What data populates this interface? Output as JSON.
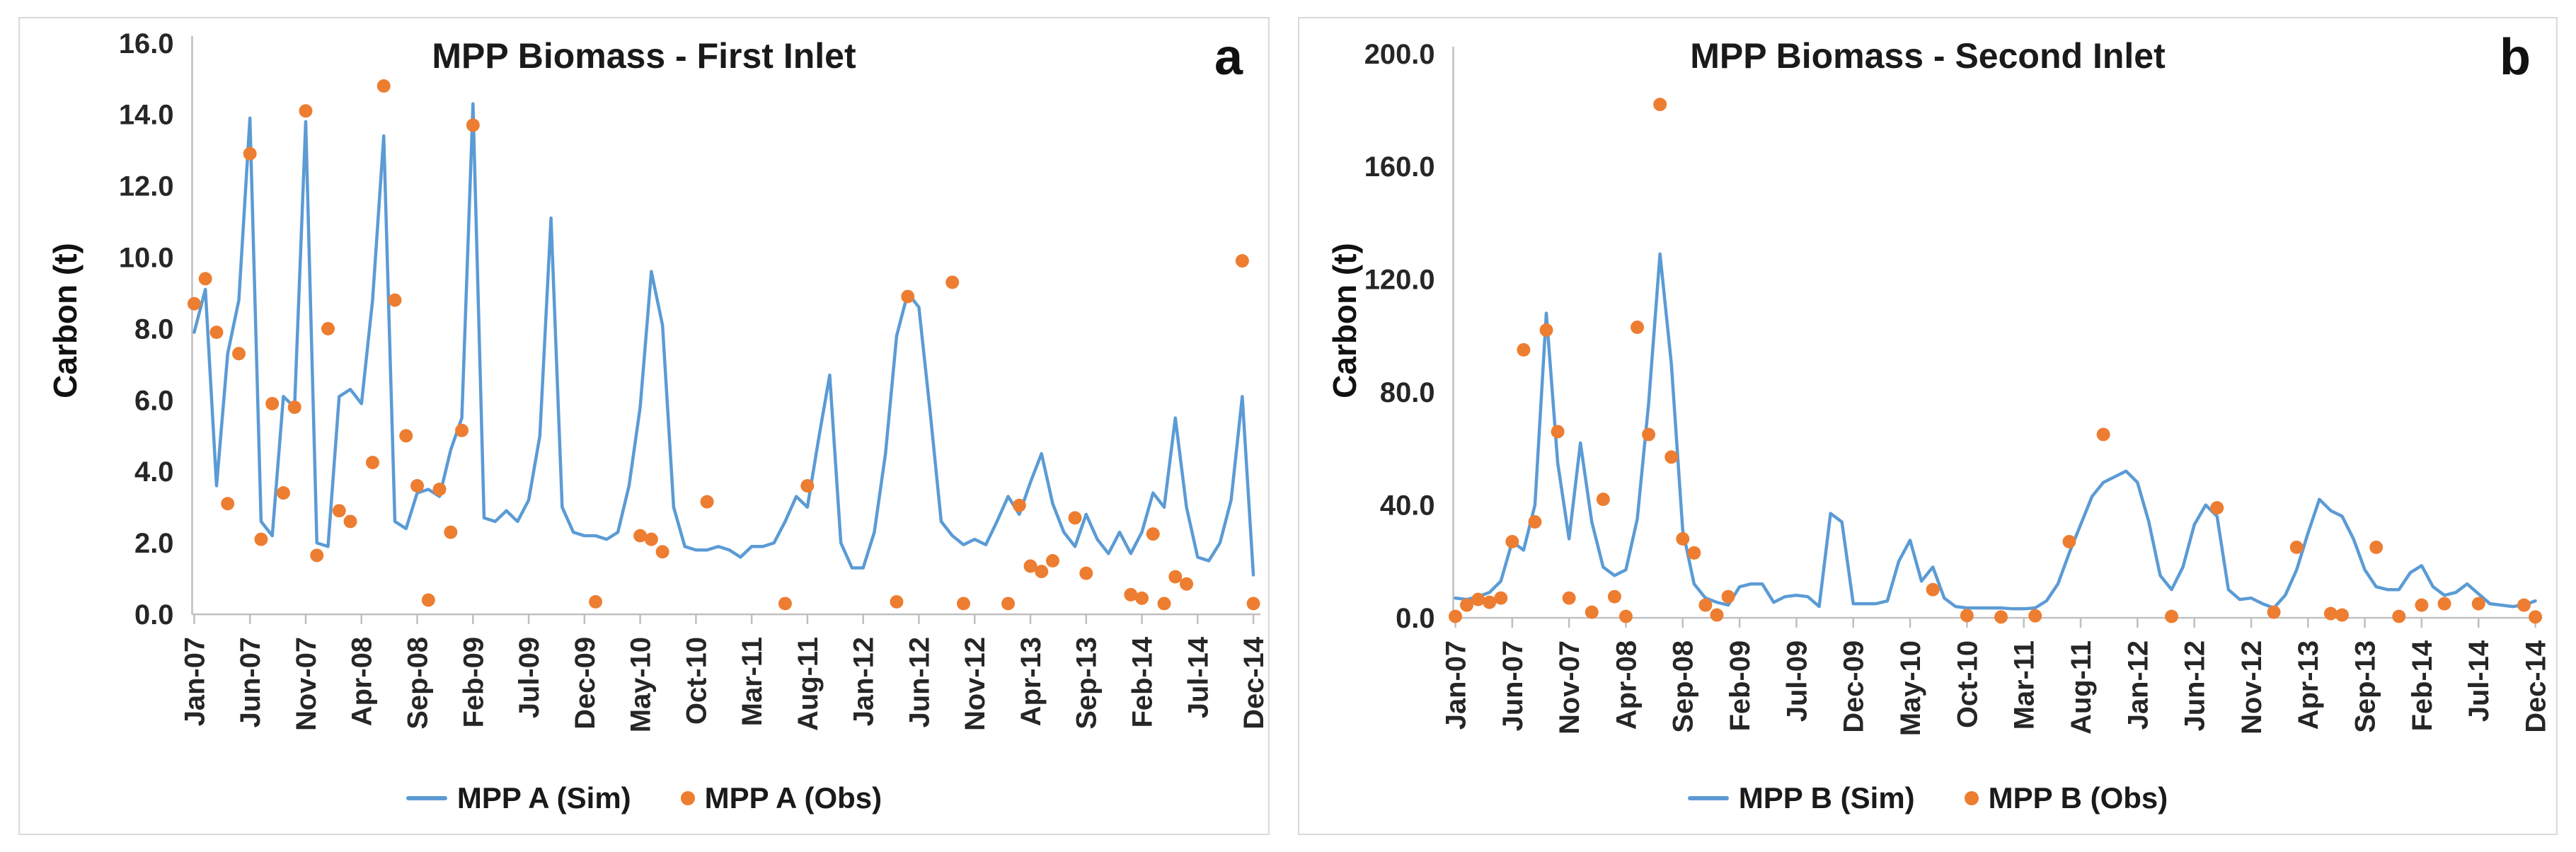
{
  "colors": {
    "sim_line": "#5B9BD5",
    "obs_dot": "#ED7D31",
    "axis_line": "#BFBFBF",
    "tick_text": "#262626",
    "title_text": "#1A1A1A",
    "panel_border": "#D9D9D9"
  },
  "panels": [
    {
      "badge": "a",
      "title": "MPP Biomass - First Inlet",
      "y_axis_title": "Carbon (t)",
      "legend": [
        {
          "type": "line",
          "label": "MPP A (Sim)"
        },
        {
          "type": "dot",
          "label": "MPP A (Obs)"
        }
      ]
    },
    {
      "badge": "b",
      "title": "MPP Biomass - Second Inlet",
      "y_axis_title": "Carbon (t)",
      "legend": [
        {
          "type": "line",
          "label": "MPP B (Sim)"
        },
        {
          "type": "dot",
          "label": "MPP B (Obs)"
        }
      ]
    }
  ],
  "chart_data": [
    {
      "type": "line",
      "title": "MPP Biomass - First Inlet",
      "ylabel": "Carbon (t)",
      "ylim": [
        0,
        16
      ],
      "y_tick_labels": [
        "0.0",
        "2.0",
        "4.0",
        "6.0",
        "8.0",
        "10.0",
        "12.0",
        "14.0",
        "16.0"
      ],
      "x_start": "Jan-07",
      "x_end": "Dec-14",
      "x_interval": "monthly",
      "x_tick_labels": [
        "Jan-07",
        "Jun-07",
        "Nov-07",
        "Apr-08",
        "Sep-08",
        "Feb-09",
        "Jul-09",
        "Dec-09",
        "May-10",
        "Oct-10",
        "Mar-11",
        "Aug-11",
        "Jan-12",
        "Jun-12",
        "Nov-12",
        "Apr-13",
        "Sep-13",
        "Feb-14",
        "Jul-14",
        "Dec-14"
      ],
      "series": [
        {
          "name": "MPP A (Sim)",
          "style": "line",
          "values": [
            7.9,
            9.1,
            3.6,
            7.3,
            8.8,
            13.9,
            2.6,
            2.2,
            6.1,
            5.8,
            13.8,
            2.0,
            1.9,
            6.1,
            6.3,
            5.9,
            8.8,
            13.4,
            2.6,
            2.4,
            3.4,
            3.5,
            3.3,
            4.6,
            5.5,
            14.3,
            2.7,
            2.6,
            2.9,
            2.6,
            3.2,
            5.0,
            11.1,
            3.0,
            2.3,
            2.2,
            2.2,
            2.1,
            2.3,
            3.6,
            5.8,
            9.6,
            8.1,
            3.0,
            1.9,
            1.8,
            1.8,
            1.9,
            1.8,
            1.6,
            1.9,
            1.9,
            2.0,
            2.6,
            3.3,
            3.0,
            4.9,
            6.7,
            2.0,
            1.3,
            1.3,
            2.3,
            4.5,
            7.8,
            9.0,
            8.6,
            5.7,
            2.6,
            2.2,
            1.95,
            2.1,
            1.95,
            2.6,
            3.3,
            2.8,
            3.7,
            4.5,
            3.1,
            2.3,
            1.9,
            2.8,
            2.1,
            1.7,
            2.3,
            1.7,
            2.3,
            3.4,
            3.0,
            5.5,
            3.0,
            1.6,
            1.5,
            2.0,
            3.2,
            6.1,
            1.1
          ]
        },
        {
          "name": "MPP A (Obs)",
          "style": "scatter",
          "points": [
            [
              "Jan-07",
              8.7
            ],
            [
              "Feb-07",
              9.4
            ],
            [
              "Mar-07",
              7.9
            ],
            [
              "Apr-07",
              3.1
            ],
            [
              "May-07",
              7.3
            ],
            [
              "Jun-07",
              12.9
            ],
            [
              "Jul-07",
              2.1
            ],
            [
              "Aug-07",
              5.9
            ],
            [
              "Sep-07",
              3.4
            ],
            [
              "Oct-07",
              5.8
            ],
            [
              "Nov-07",
              14.1
            ],
            [
              "Dec-07",
              1.65
            ],
            [
              "Jan-08",
              8.0
            ],
            [
              "Feb-08",
              2.9
            ],
            [
              "Mar-08",
              2.6
            ],
            [
              "May-08",
              4.25
            ],
            [
              "Jun-08",
              14.8
            ],
            [
              "Jul-08",
              8.8
            ],
            [
              "Aug-08",
              5.0
            ],
            [
              "Sep-08",
              3.6
            ],
            [
              "Oct-08",
              0.4
            ],
            [
              "Nov-08",
              3.5
            ],
            [
              "Dec-08",
              2.3
            ],
            [
              "Jan-09",
              5.15
            ],
            [
              "Feb-09",
              13.7
            ],
            [
              "Jan-10",
              0.35
            ],
            [
              "May-10",
              2.2
            ],
            [
              "Jun-10",
              2.1
            ],
            [
              "Jul-10",
              1.75
            ],
            [
              "Nov-10",
              3.15
            ],
            [
              "Jun-11",
              0.3
            ],
            [
              "Aug-11",
              3.6
            ],
            [
              "Apr-12",
              0.35
            ],
            [
              "May-12",
              8.9
            ],
            [
              "Sep-12",
              9.3
            ],
            [
              "Oct-12",
              0.3
            ],
            [
              "Feb-13",
              0.3
            ],
            [
              "Mar-13",
              3.05
            ],
            [
              "Apr-13",
              1.35
            ],
            [
              "May-13",
              1.2
            ],
            [
              "Jun-13",
              1.5
            ],
            [
              "Aug-13",
              2.7
            ],
            [
              "Sep-13",
              1.15
            ],
            [
              "Jan-14",
              0.55
            ],
            [
              "Feb-14",
              0.45
            ],
            [
              "Mar-14",
              2.25
            ],
            [
              "Apr-14",
              0.3
            ],
            [
              "May-14",
              1.05
            ],
            [
              "Jun-14",
              0.85
            ],
            [
              "Nov-14",
              9.9
            ],
            [
              "Dec-14",
              0.3
            ]
          ]
        }
      ]
    },
    {
      "type": "line",
      "title": "MPP Biomass - Second Inlet",
      "ylabel": "Carbon (t)",
      "ylim": [
        0,
        200
      ],
      "y_tick_labels": [
        "0.0",
        "40.0",
        "80.0",
        "120.0",
        "160.0",
        "200.0"
      ],
      "x_start": "Jan-07",
      "x_end": "Dec-14",
      "x_interval": "monthly",
      "x_tick_labels": [
        "Jan-07",
        "Jun-07",
        "Nov-07",
        "Apr-08",
        "Sep-08",
        "Feb-09",
        "Jul-09",
        "Dec-09",
        "May-10",
        "Oct-10",
        "Mar-11",
        "Aug-11",
        "Jan-12",
        "Jun-12",
        "Nov-12",
        "Apr-13",
        "Sep-13",
        "Feb-14",
        "Jul-14",
        "Dec-14"
      ],
      "series": [
        {
          "name": "MPP B (Sim)",
          "style": "line",
          "values": [
            7,
            6.5,
            7.5,
            9,
            13,
            27,
            24,
            40,
            108,
            55,
            28,
            62,
            34,
            18,
            15,
            17,
            35,
            76,
            129,
            90,
            31,
            12,
            7,
            5.5,
            4.5,
            11,
            12,
            12,
            5.5,
            7.5,
            8,
            7.5,
            4,
            37,
            34,
            5,
            5,
            5,
            6,
            20,
            27.5,
            13,
            18,
            7,
            4,
            3.5,
            3.5,
            3.5,
            3.5,
            3.2,
            3.2,
            3.5,
            6,
            12,
            23,
            33,
            43,
            48,
            50,
            52,
            48,
            34,
            15,
            10,
            18,
            33,
            40,
            36,
            10,
            6.5,
            7,
            5,
            3.5,
            8,
            17,
            30,
            42,
            38,
            36,
            28,
            17,
            11,
            10,
            10,
            16,
            18.5,
            11,
            8,
            9,
            12,
            8.5,
            5,
            4.5,
            4,
            4.5,
            6
          ]
        },
        {
          "name": "MPP B (Obs)",
          "style": "scatter",
          "points": [
            [
              "Jan-07",
              0.5
            ],
            [
              "Feb-07",
              4.5
            ],
            [
              "Mar-07",
              6.5
            ],
            [
              "Apr-07",
              5.5
            ],
            [
              "May-07",
              7
            ],
            [
              "Jun-07",
              27
            ],
            [
              "Jul-07",
              95
            ],
            [
              "Aug-07",
              34
            ],
            [
              "Sep-07",
              102
            ],
            [
              "Oct-07",
              66
            ],
            [
              "Nov-07",
              7
            ],
            [
              "Jan-08",
              2
            ],
            [
              "Feb-08",
              42
            ],
            [
              "Mar-08",
              7.5
            ],
            [
              "Apr-08",
              0.5
            ],
            [
              "May-08",
              103
            ],
            [
              "Jun-08",
              65
            ],
            [
              "Jul-08",
              182
            ],
            [
              "Aug-08",
              57
            ],
            [
              "Sep-08",
              28
            ],
            [
              "Oct-08",
              23
            ],
            [
              "Nov-08",
              4.5
            ],
            [
              "Dec-08",
              1
            ],
            [
              "Jan-09",
              7.5
            ],
            [
              "Jul-10",
              10
            ],
            [
              "Oct-10",
              0.8
            ],
            [
              "Jan-11",
              0.3
            ],
            [
              "Apr-11",
              0.7
            ],
            [
              "Jul-11",
              27
            ],
            [
              "Oct-11",
              65
            ],
            [
              "Apr-12",
              0.5
            ],
            [
              "Aug-12",
              39
            ],
            [
              "Jan-13",
              2
            ],
            [
              "Mar-13",
              25
            ],
            [
              "Jun-13",
              1.5
            ],
            [
              "Jul-13",
              1
            ],
            [
              "Oct-13",
              25
            ],
            [
              "Dec-13",
              0.5
            ],
            [
              "Feb-14",
              4.5
            ],
            [
              "Apr-14",
              5
            ],
            [
              "Jul-14",
              5
            ],
            [
              "Nov-14",
              4.5
            ],
            [
              "Dec-14",
              0.3
            ]
          ]
        }
      ]
    }
  ]
}
